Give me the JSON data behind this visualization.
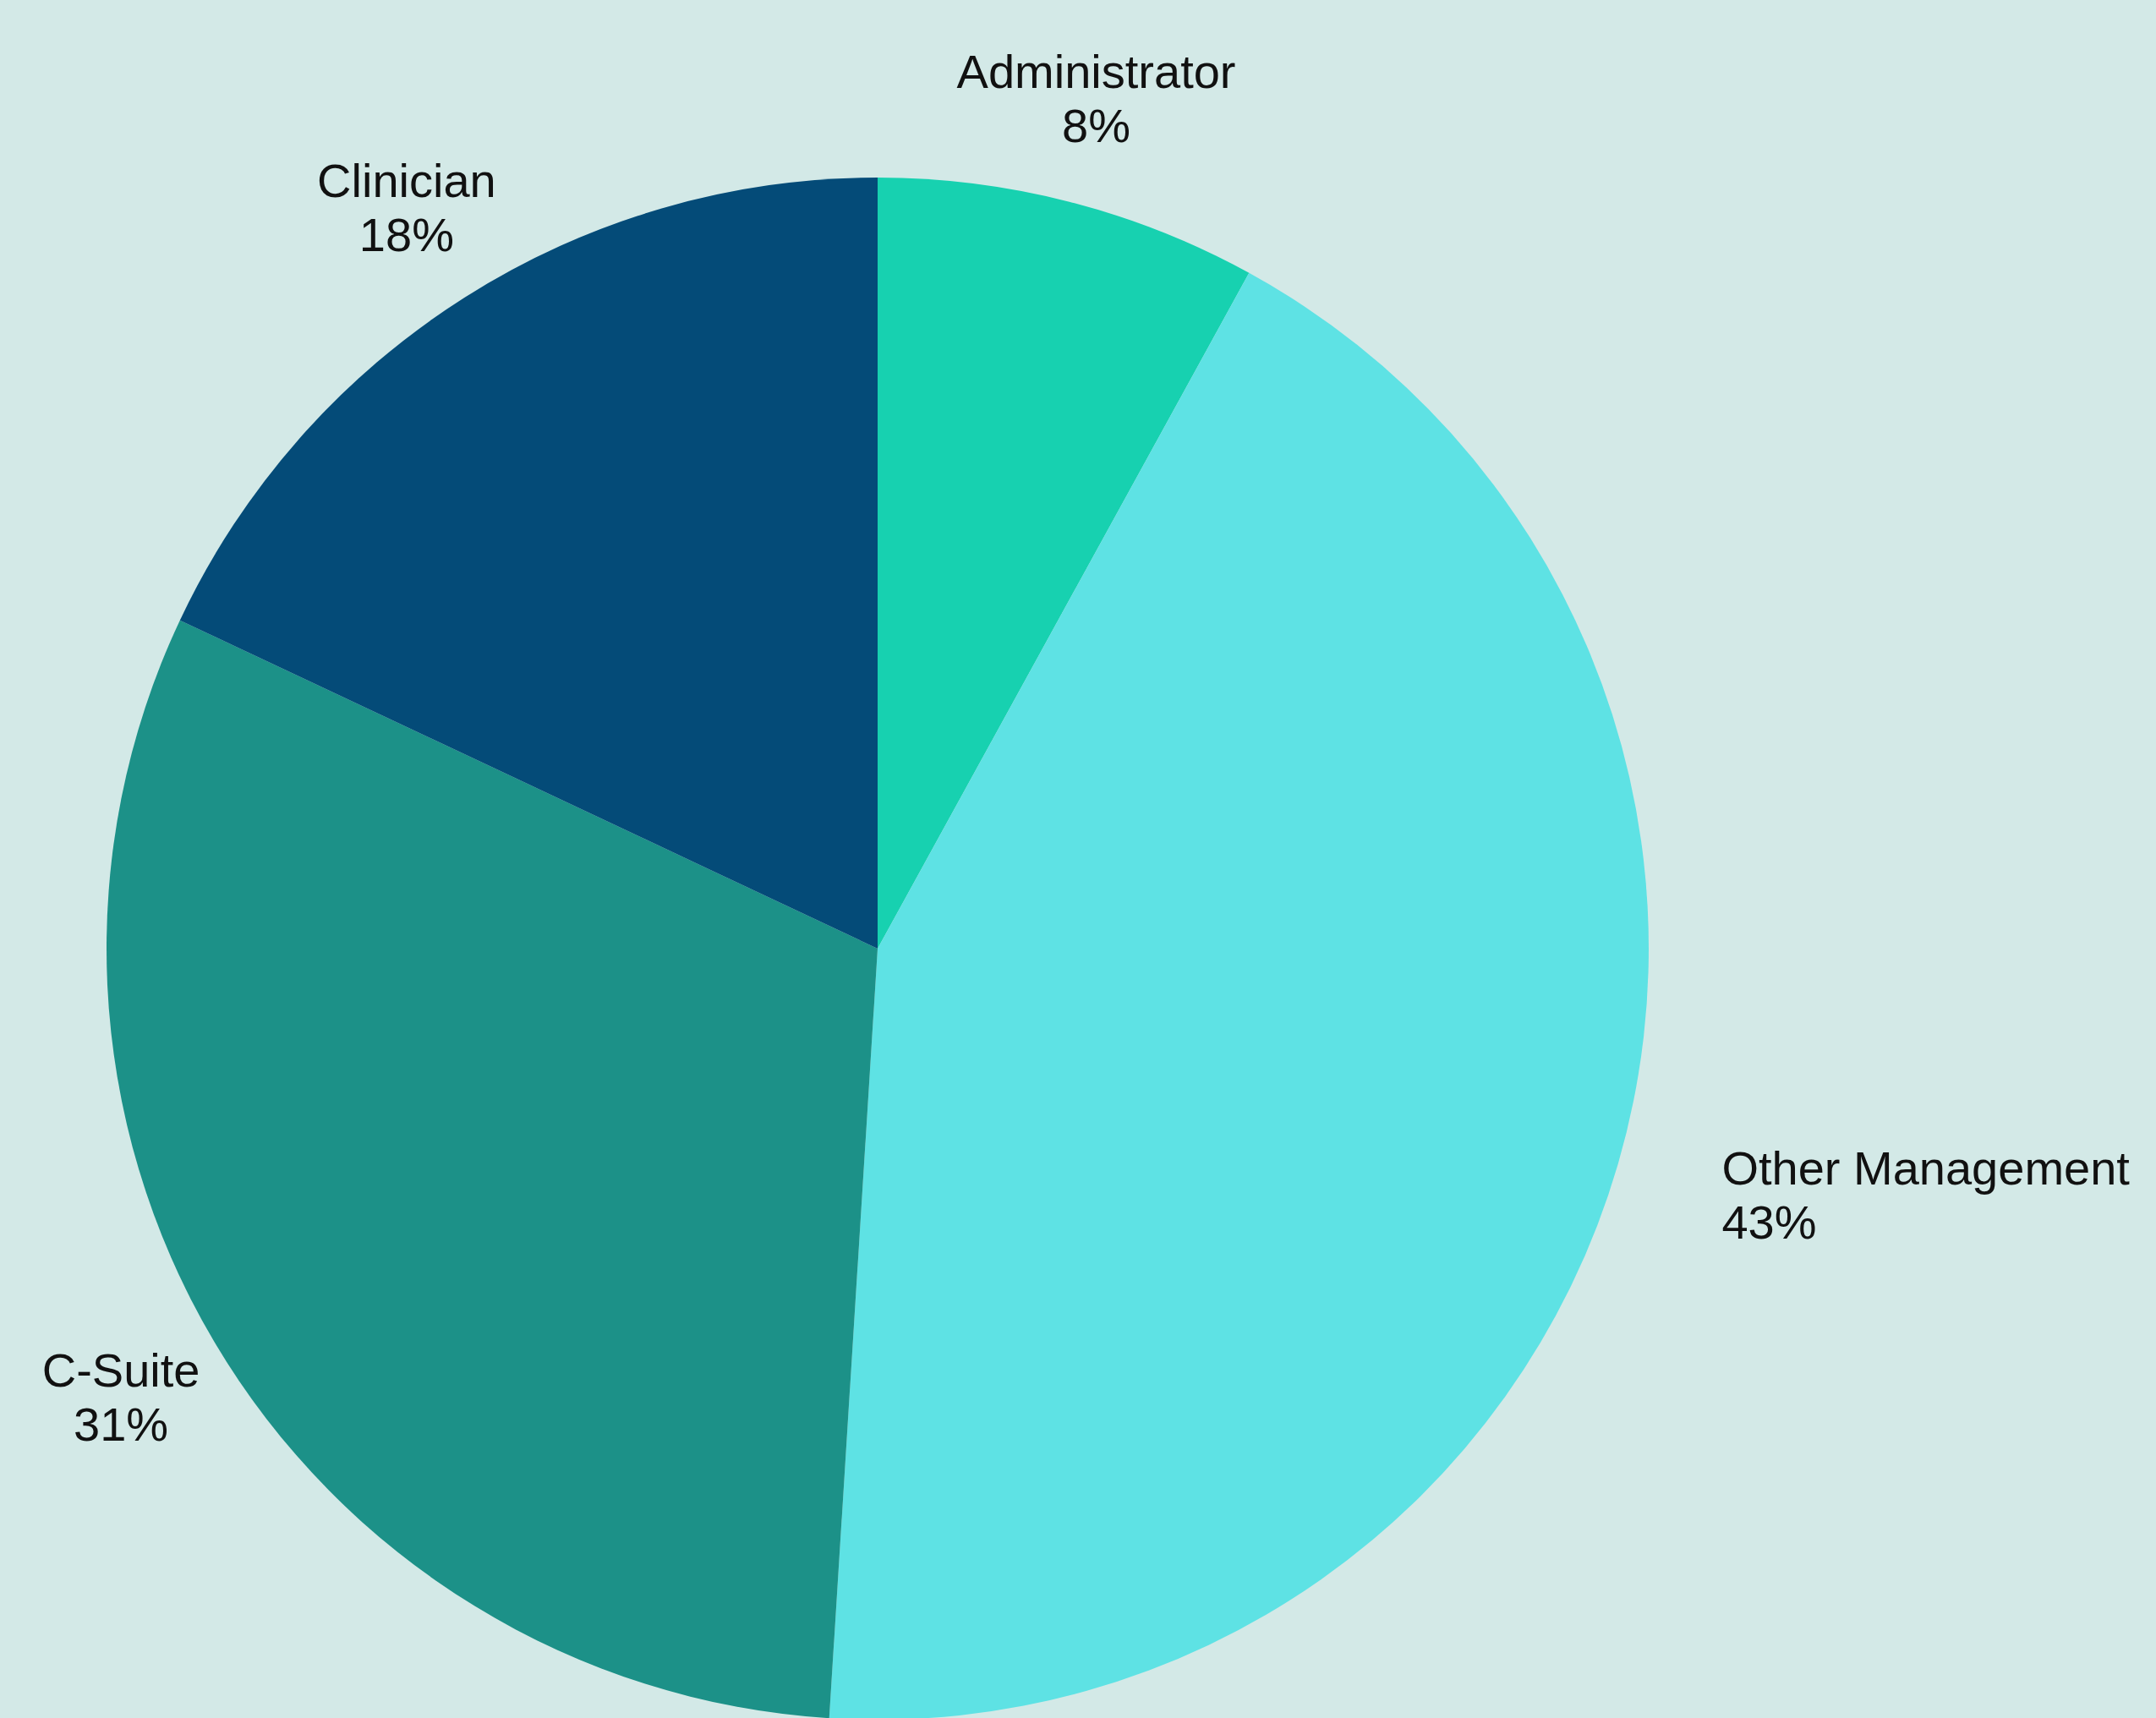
{
  "chart_data": {
    "type": "pie",
    "categories": [
      "Administrator",
      "Other Management",
      "C-Suite",
      "Clinician"
    ],
    "values": [
      8,
      43,
      31,
      18
    ],
    "value_labels": [
      "8%",
      "43%",
      "31%",
      "18%"
    ],
    "colors": [
      "#17d1b0",
      "#5ee2e4",
      "#1c9188",
      "#044b78"
    ]
  }
}
